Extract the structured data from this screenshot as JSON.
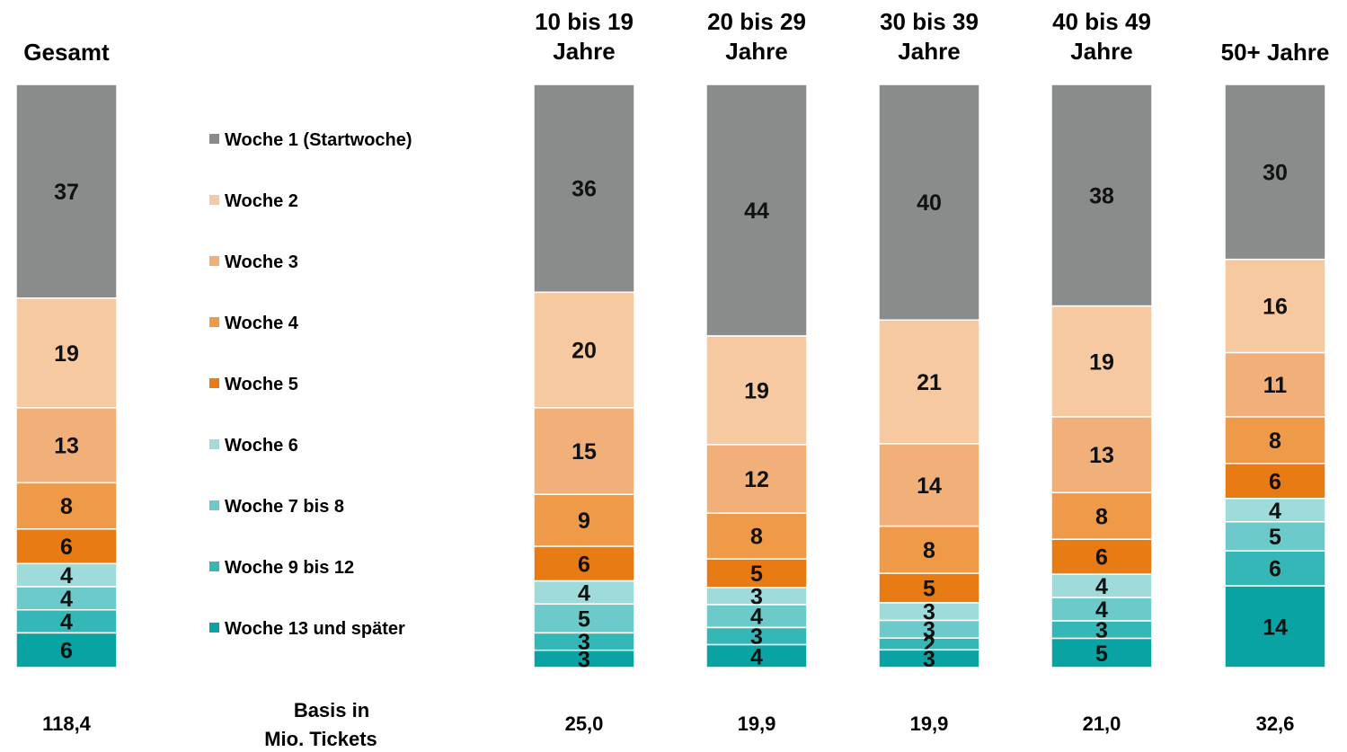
{
  "chart_data": {
    "type": "bar",
    "stacked": true,
    "normalized_to_100": true,
    "categories": [
      "Gesamt",
      "10 bis 19 Jahre",
      "20 bis 29 Jahre",
      "30 bis 39 Jahre",
      "40 bis 49 Jahre",
      "50+ Jahre"
    ],
    "category_lines": [
      [
        "Gesamt"
      ],
      [
        "10 bis 19",
        "Jahre"
      ],
      [
        "20 bis 29",
        "Jahre"
      ],
      [
        "30 bis 39",
        "Jahre"
      ],
      [
        "40 bis 49",
        "Jahre"
      ],
      [
        "50+ Jahre"
      ]
    ],
    "series": [
      {
        "name": "Woche 1 (Startwoche)",
        "color": "#8a8c8c",
        "values": [
          37,
          36,
          44,
          40,
          38,
          30
        ]
      },
      {
        "name": "Woche 2",
        "color": "#f6c9a0",
        "values": [
          19,
          20,
          19,
          21,
          19,
          16
        ]
      },
      {
        "name": "Woche 3",
        "color": "#f1b07a",
        "values": [
          13,
          15,
          12,
          14,
          13,
          11
        ]
      },
      {
        "name": "Woche 4",
        "color": "#ee9a48",
        "values": [
          8,
          9,
          8,
          8,
          8,
          8
        ]
      },
      {
        "name": "Woche 5",
        "color": "#e97b15",
        "values": [
          6,
          6,
          5,
          5,
          6,
          6
        ]
      },
      {
        "name": "Woche 6",
        "color": "#9fdbdb",
        "values": [
          4,
          4,
          3,
          3,
          4,
          4
        ]
      },
      {
        "name": "Woche 7 bis 8",
        "color": "#6ccaca",
        "values": [
          4,
          5,
          4,
          3,
          4,
          5
        ]
      },
      {
        "name": "Woche 9 bis 12",
        "color": "#36b7b7",
        "values": [
          4,
          3,
          3,
          2,
          3,
          6
        ]
      },
      {
        "name": "Woche 13 und später",
        "color": "#0aa3a3",
        "values": [
          6,
          3,
          4,
          3,
          5,
          14
        ]
      }
    ],
    "base_values": [
      "118,4",
      "25,0",
      "19,9",
      "19,9",
      "21,0",
      "32,6"
    ],
    "basis_label_lines": [
      "Basis in",
      "Mio. Tickets"
    ],
    "legend_position": "left-middle"
  }
}
